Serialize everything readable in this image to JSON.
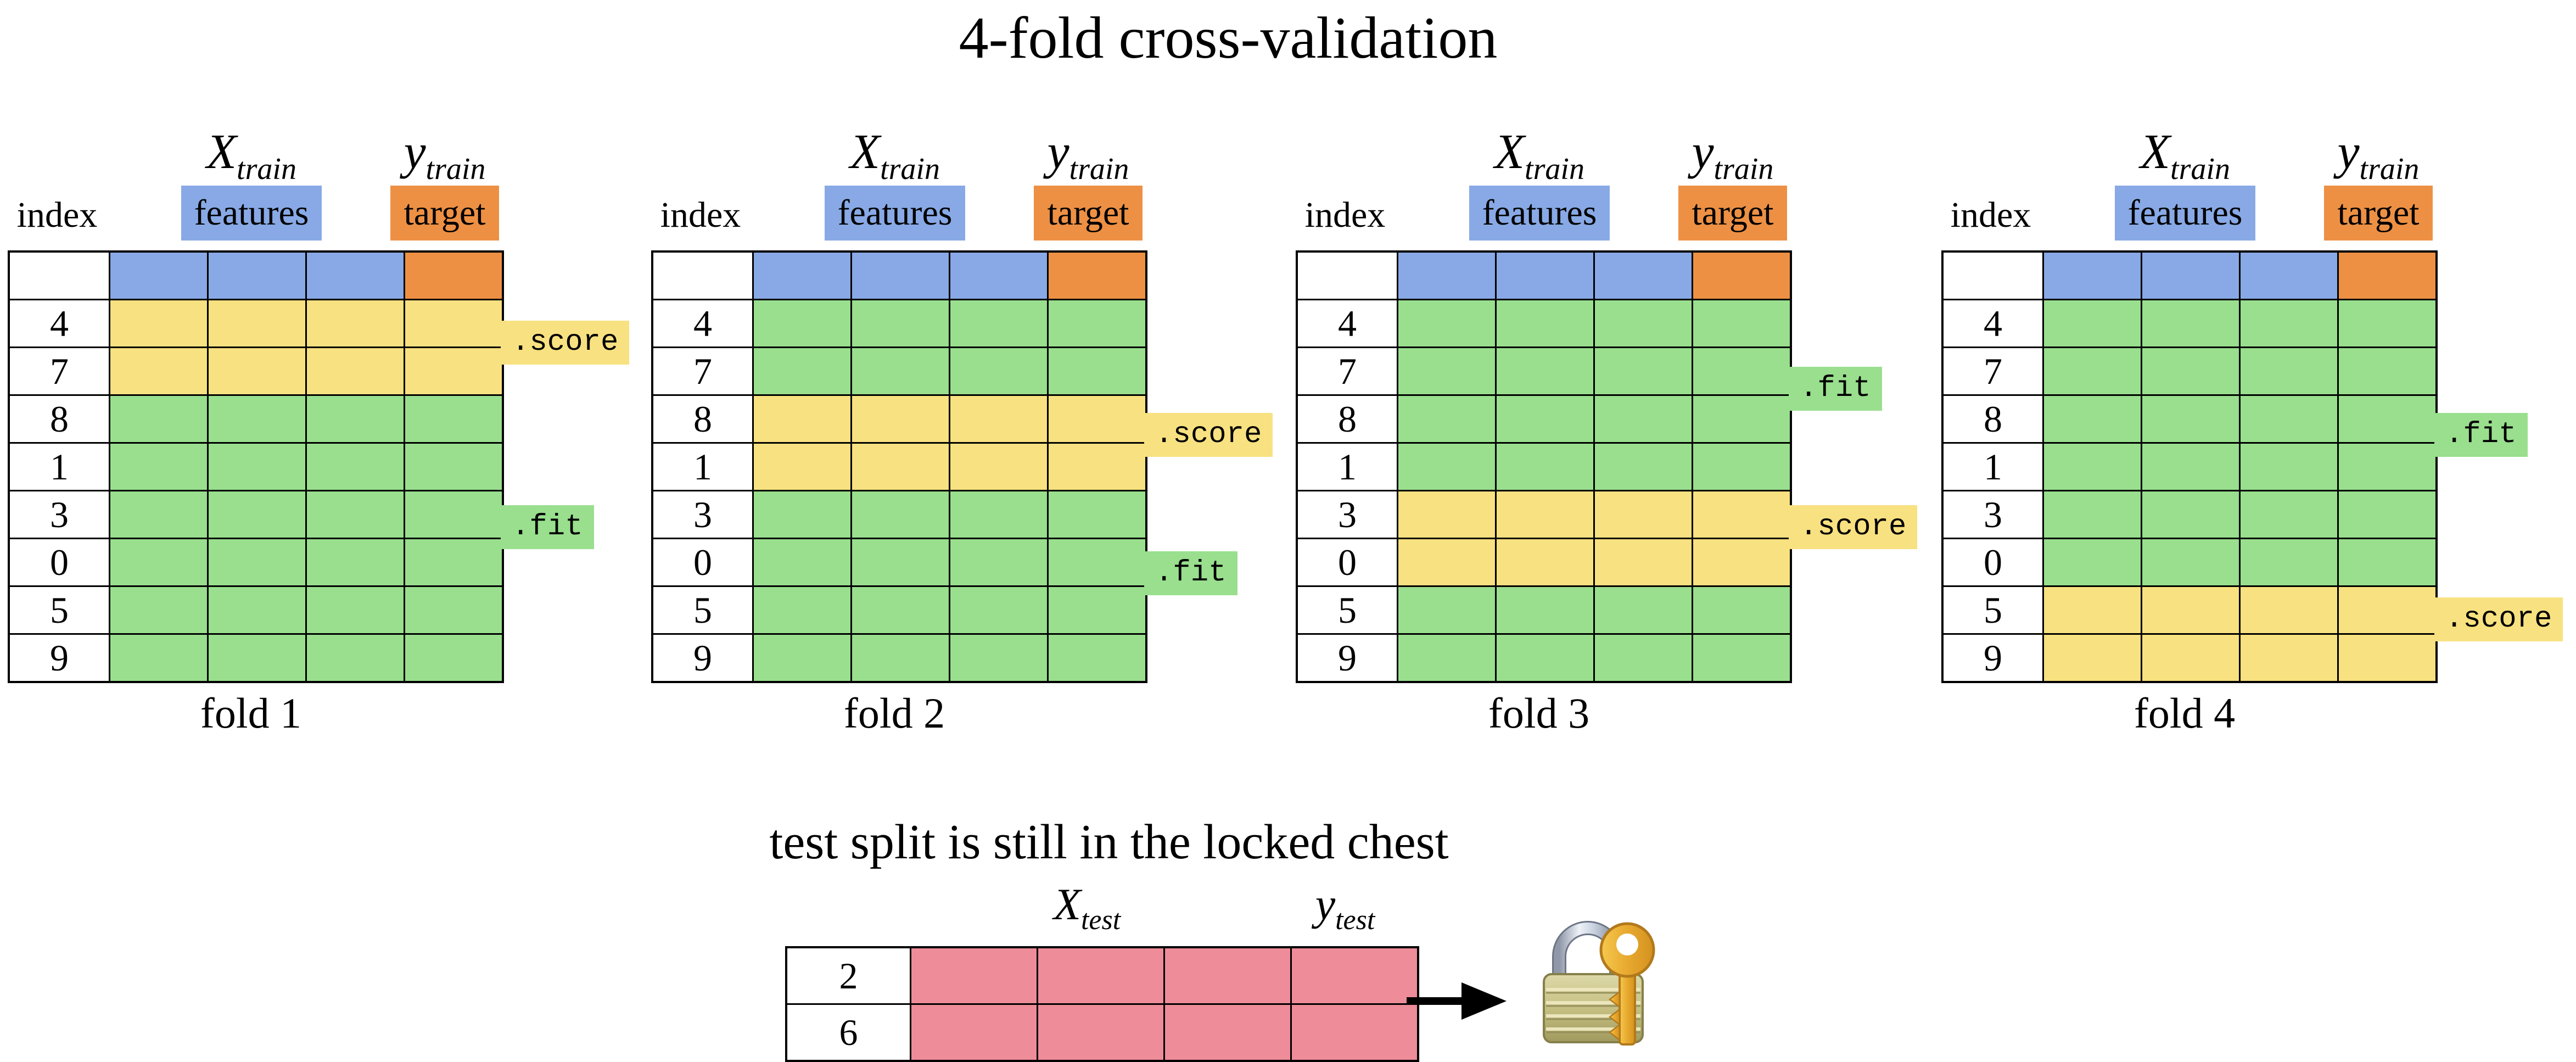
{
  "title": "4-fold cross-validation",
  "palette": {
    "features_blue": "#88a9e5",
    "target_orange": "#ed9044",
    "score_yellow": "#f8e180",
    "fit_green": "#99df8e",
    "test_pink": "#ee8c99",
    "line_black": "#000000"
  },
  "fold_header": {
    "index_label": "index",
    "x_symbol": "X",
    "x_subscript": "train",
    "features_label": "features",
    "y_symbol": "y",
    "y_subscript": "train",
    "target_label": "target"
  },
  "row_indices": [
    "4",
    "7",
    "8",
    "1",
    "3",
    "0",
    "5",
    "9"
  ],
  "folds": [
    {
      "caption": "fold 1",
      "test_rows": [
        "4",
        "7"
      ],
      "score_label": ".score",
      "fit_label": ".fit",
      "score_anchor_row": 2,
      "fit_anchor_row": 6
    },
    {
      "caption": "fold 2",
      "test_rows": [
        "8",
        "1"
      ],
      "score_label": ".score",
      "fit_label": ".fit",
      "score_anchor_row": 4,
      "fit_anchor_row": 7
    },
    {
      "caption": "fold 3",
      "test_rows": [
        "3",
        "0"
      ],
      "score_label": ".score",
      "fit_label": ".fit",
      "score_anchor_row": 6,
      "fit_anchor_row": 3
    },
    {
      "caption": "fold 4",
      "test_rows": [
        "5",
        "9"
      ],
      "score_label": ".score",
      "fit_label": ".fit",
      "score_anchor_row": 8,
      "fit_anchor_row": 4
    }
  ],
  "test_section": {
    "caption": "test split is still in the locked chest",
    "x_symbol": "X",
    "x_subscript": "test",
    "y_symbol": "y",
    "y_subscript": "test",
    "row_indices": [
      "2",
      "6"
    ],
    "icons": {
      "arrow": "right-arrow",
      "lock": "locked-with-key"
    }
  }
}
